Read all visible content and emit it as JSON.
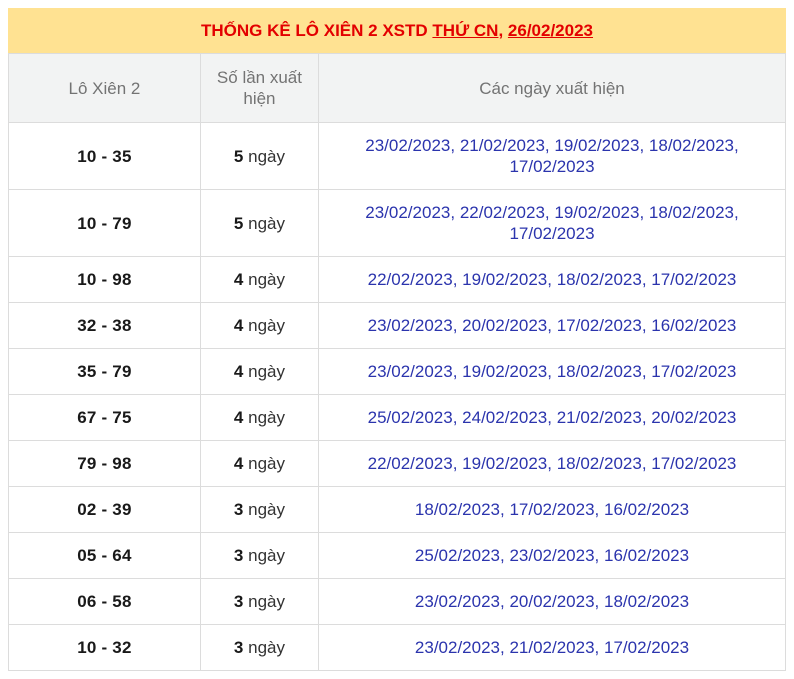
{
  "title": {
    "prefix": "THỐNG KÊ LÔ XIÊN 2 XSTD",
    "day_link": "THỨ CN",
    "comma": ", ",
    "date_link": "26/02/2023"
  },
  "table": {
    "columns": [
      "Lô Xiên 2",
      "Số lần xuất hiện",
      "Các ngày xuất hiện"
    ],
    "count_unit": "ngày",
    "rows": [
      {
        "pair": "10 - 35",
        "count": "5",
        "dates": [
          "23/02/2023",
          "21/02/2023",
          "19/02/2023",
          "18/02/2023",
          "17/02/2023"
        ]
      },
      {
        "pair": "10 - 79",
        "count": "5",
        "dates": [
          "23/02/2023",
          "22/02/2023",
          "19/02/2023",
          "18/02/2023",
          "17/02/2023"
        ]
      },
      {
        "pair": "10 - 98",
        "count": "4",
        "dates": [
          "22/02/2023",
          "19/02/2023",
          "18/02/2023",
          "17/02/2023"
        ]
      },
      {
        "pair": "32 - 38",
        "count": "4",
        "dates": [
          "23/02/2023",
          "20/02/2023",
          "17/02/2023",
          "16/02/2023"
        ]
      },
      {
        "pair": "35 - 79",
        "count": "4",
        "dates": [
          "23/02/2023",
          "19/02/2023",
          "18/02/2023",
          "17/02/2023"
        ]
      },
      {
        "pair": "67 - 75",
        "count": "4",
        "dates": [
          "25/02/2023",
          "24/02/2023",
          "21/02/2023",
          "20/02/2023"
        ]
      },
      {
        "pair": "79 - 98",
        "count": "4",
        "dates": [
          "22/02/2023",
          "19/02/2023",
          "18/02/2023",
          "17/02/2023"
        ]
      },
      {
        "pair": "02 - 39",
        "count": "3",
        "dates": [
          "18/02/2023",
          "17/02/2023",
          "16/02/2023"
        ]
      },
      {
        "pair": "05 - 64",
        "count": "3",
        "dates": [
          "25/02/2023",
          "23/02/2023",
          "16/02/2023"
        ]
      },
      {
        "pair": "06 - 58",
        "count": "3",
        "dates": [
          "23/02/2023",
          "20/02/2023",
          "18/02/2023"
        ]
      },
      {
        "pair": "10 - 32",
        "count": "3",
        "dates": [
          "23/02/2023",
          "21/02/2023",
          "17/02/2023"
        ]
      }
    ]
  },
  "colors": {
    "title_bg": "#ffe292",
    "title_text": "#e30000",
    "header_bg": "#f2f3f3",
    "header_text": "#737373",
    "border": "#dcdcdc",
    "date_link": "#2b34ad",
    "pair_text": "#191919",
    "count_text": "#333333"
  }
}
